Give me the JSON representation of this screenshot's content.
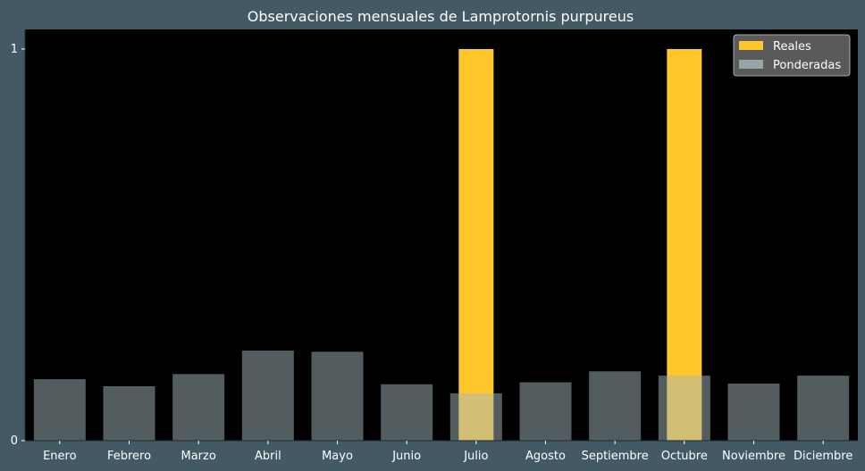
{
  "colors": {
    "background": "#435964",
    "plot_background": "#000000",
    "reales": "#ffc72c",
    "ponderadas": "#a6b8bd",
    "text": "#ffffff",
    "legend_background": "#5a5a5a"
  },
  "chart_data": {
    "type": "bar",
    "title": "Observaciones mensuales de Lamprotornis purpureus",
    "xlabel": "",
    "ylabel": "",
    "categories": [
      "Enero",
      "Febrero",
      "Marzo",
      "Abril",
      "Mayo",
      "Junio",
      "Julio",
      "Agosto",
      "Septiembre",
      "Octubre",
      "Noviembre",
      "Diciembre"
    ],
    "yticks": [
      0,
      1
    ],
    "ylim": [
      0,
      1.05
    ],
    "grid": false,
    "legend_position": "top-right",
    "series": [
      {
        "name": "Reales",
        "color": "#ffc72c",
        "values": [
          0,
          0,
          0,
          0,
          0,
          0,
          1,
          0,
          0,
          1,
          0,
          0
        ]
      },
      {
        "name": "Ponderadas",
        "color": "#a6b8bd",
        "values": [
          0.157,
          0.139,
          0.17,
          0.23,
          0.227,
          0.144,
          0.121,
          0.149,
          0.177,
          0.166,
          0.146,
          0.166
        ]
      }
    ]
  }
}
